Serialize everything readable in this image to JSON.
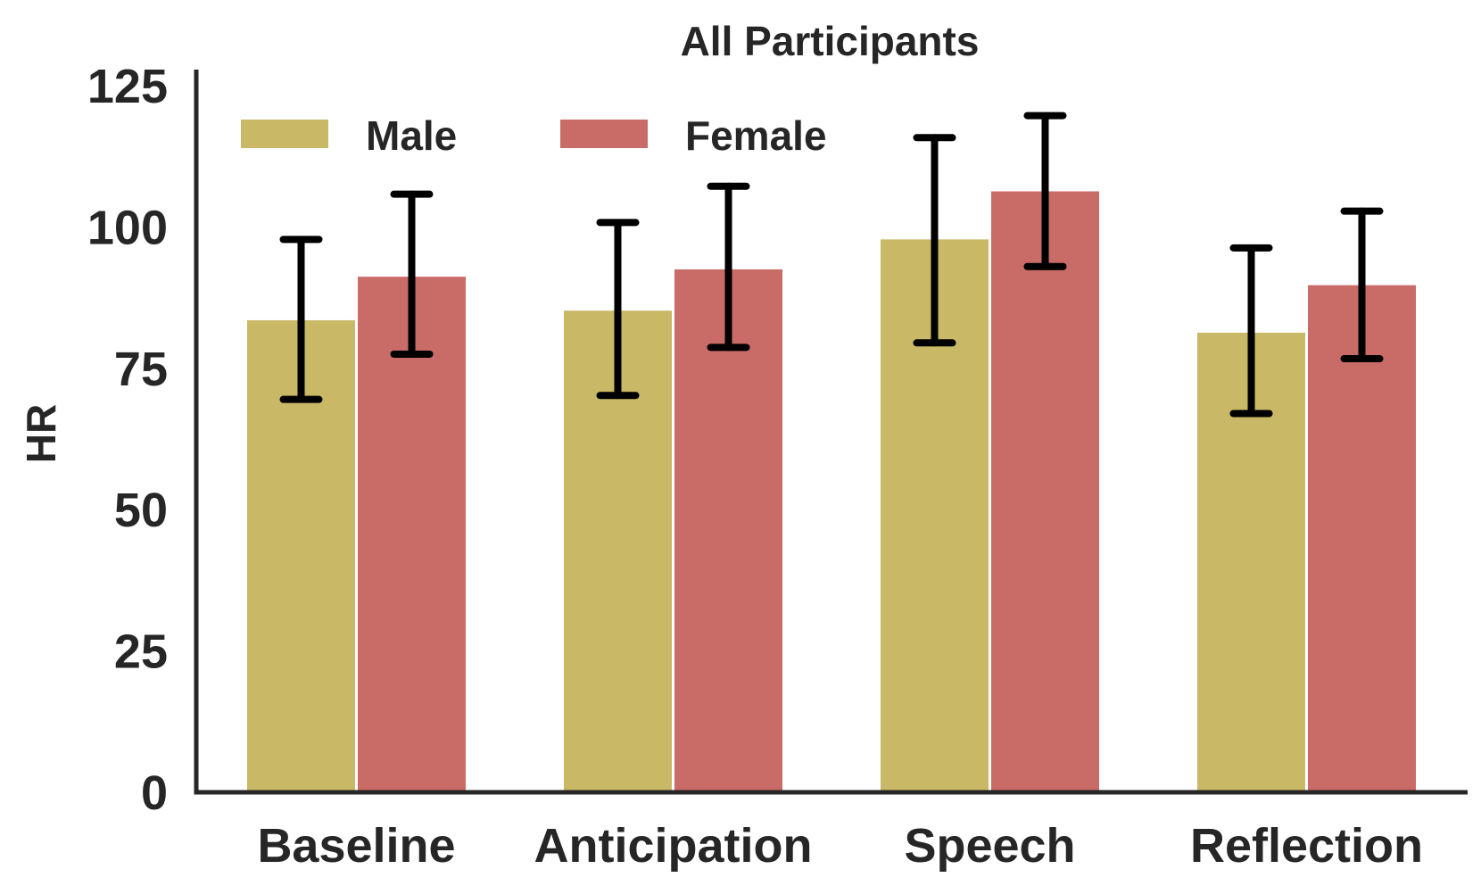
{
  "chart_data": {
    "type": "bar",
    "title": "All Participants",
    "xlabel": "",
    "ylabel": "HR",
    "ylim": [
      0,
      125
    ],
    "yticks": [
      "0",
      "25",
      "50",
      "75",
      "100",
      "125"
    ],
    "categories": [
      "Baseline",
      "Anticipation",
      "Speech",
      "Reflection"
    ],
    "legend_position": "top-left",
    "grid": false,
    "series": [
      {
        "name": "Male",
        "color": "#c9b866",
        "values": [
          83.5,
          85.2,
          97.8,
          81.3
        ],
        "err_low": [
          69.5,
          70.2,
          79.5,
          67.0
        ],
        "err_high": [
          97.8,
          100.8,
          115.8,
          96.3
        ]
      },
      {
        "name": "Female",
        "color": "#c96b66",
        "values": [
          91.2,
          92.5,
          106.3,
          89.7
        ],
        "err_low": [
          77.5,
          78.7,
          93.0,
          76.7
        ],
        "err_high": [
          105.8,
          107.2,
          119.7,
          102.8
        ]
      }
    ]
  }
}
